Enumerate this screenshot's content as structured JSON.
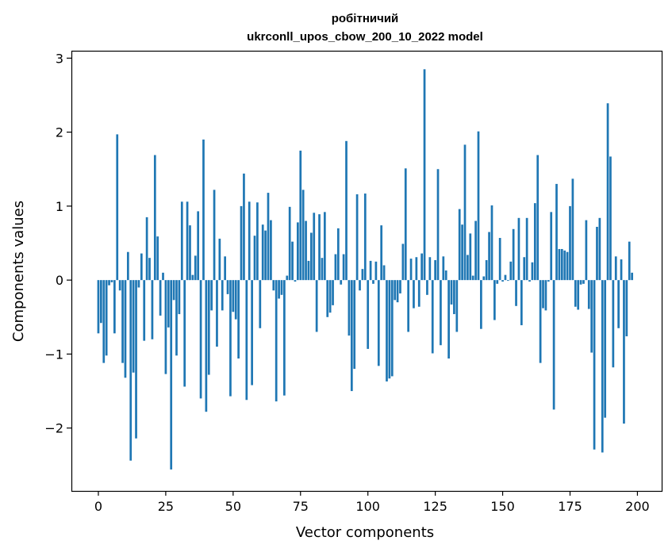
{
  "chart_data": {
    "type": "bar",
    "title_line1": "робітничий",
    "title_line2": "ukrconll_upos_cbow_200_10_2022 model",
    "xlabel": "Vector components",
    "ylabel": "Components values",
    "xlim": [
      -10,
      209
    ],
    "ylim": [
      -2.85,
      3.1
    ],
    "xticks": [
      0,
      25,
      50,
      75,
      100,
      125,
      150,
      175,
      200
    ],
    "yticks": [
      -2,
      -1,
      0,
      1,
      2,
      3
    ],
    "ytick_labels": [
      "−2",
      "−1",
      "0",
      "1",
      "2",
      "3"
    ],
    "grid": false,
    "legend": "none",
    "bar_color": "#1f77b4",
    "values": [
      -0.72,
      -0.58,
      -1.12,
      -1.02,
      -0.07,
      -0.03,
      -0.72,
      1.97,
      -0.14,
      -1.12,
      -1.32,
      0.38,
      -2.44,
      -1.25,
      -2.14,
      -0.1,
      0.36,
      -0.82,
      0.85,
      0.3,
      -0.8,
      1.69,
      0.59,
      -0.48,
      0.1,
      -1.27,
      -0.64,
      -2.56,
      -0.27,
      -1.02,
      -0.46,
      1.06,
      -1.44,
      1.06,
      0.74,
      0.07,
      0.33,
      0.93,
      -1.6,
      1.9,
      -1.78,
      -1.28,
      -0.41,
      1.22,
      -0.9,
      0.56,
      -0.41,
      0.32,
      -0.19,
      -1.57,
      -0.43,
      -0.53,
      -1.06,
      1.0,
      1.44,
      -1.62,
      1.06,
      -1.42,
      0.6,
      1.05,
      -0.65,
      0.75,
      0.67,
      1.18,
      0.81,
      -0.14,
      -1.64,
      -0.25,
      -0.2,
      -1.56,
      0.06,
      0.99,
      0.52,
      -0.02,
      0.78,
      1.75,
      1.22,
      0.8,
      0.26,
      0.64,
      0.91,
      -0.7,
      0.89,
      0.3,
      0.92,
      -0.5,
      -0.44,
      -0.34,
      0.35,
      0.7,
      -0.06,
      0.35,
      1.88,
      -0.75,
      -1.5,
      -1.2,
      1.16,
      -0.14,
      0.15,
      1.17,
      -0.93,
      0.26,
      -0.05,
      0.25,
      -1.16,
      0.74,
      0.2,
      -1.37,
      -1.33,
      -1.3,
      -0.27,
      -0.3,
      -0.18,
      0.49,
      1.51,
      -0.7,
      0.29,
      -0.38,
      0.31,
      -0.36,
      0.36,
      2.85,
      -0.2,
      0.31,
      -0.99,
      0.27,
      1.5,
      -0.88,
      0.32,
      0.13,
      -1.06,
      -0.33,
      -0.46,
      -0.7,
      0.96,
      0.75,
      1.83,
      0.34,
      0.63,
      0.06,
      0.8,
      2.01,
      -0.66,
      0.05,
      0.27,
      0.65,
      1.01,
      -0.54,
      -0.05,
      0.57,
      -0.02,
      0.07,
      -0.01,
      0.25,
      0.69,
      -0.35,
      0.84,
      -0.61,
      0.31,
      0.84,
      -0.02,
      0.24,
      1.04,
      1.69,
      -1.12,
      -0.38,
      -0.41,
      -0.02,
      0.92,
      -1.75,
      1.3,
      0.42,
      0.42,
      0.4,
      0.38,
      1.0,
      1.37,
      -0.36,
      -0.4,
      -0.06,
      -0.05,
      0.81,
      -0.39,
      -0.98,
      -2.29,
      0.72,
      0.84,
      -2.33,
      -1.86,
      2.39,
      1.67,
      -1.18,
      0.32,
      -0.65,
      0.28,
      -1.94,
      -0.76,
      0.52,
      0.1
    ]
  }
}
